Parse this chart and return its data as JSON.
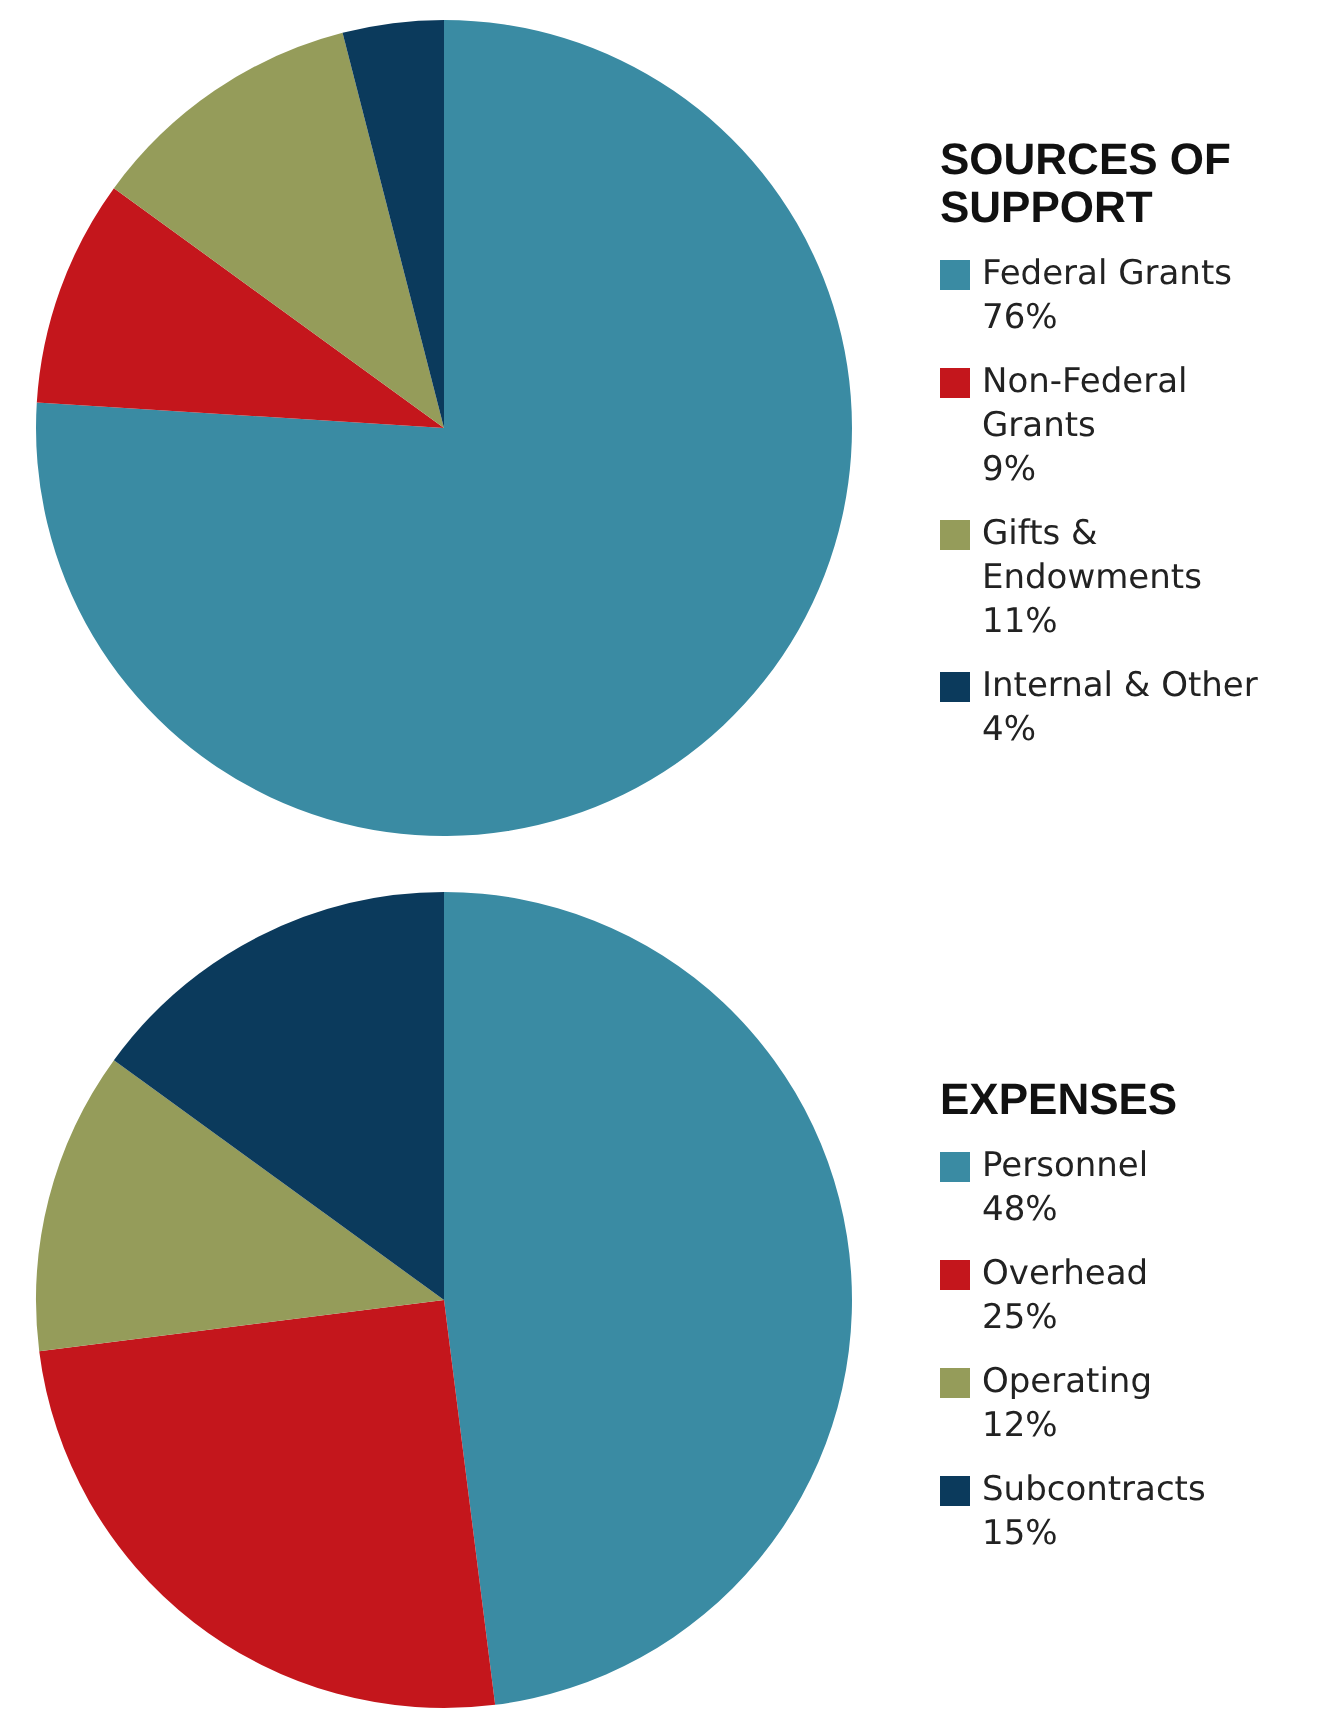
{
  "chart_data": [
    {
      "type": "pie",
      "title": "SOURCES OF SUPPORT",
      "legend": "right",
      "categories": [
        "Federal Grants",
        "Non-Federal Grants",
        "Gifts & Endowments",
        "Internal & Other"
      ],
      "values": [
        76,
        9,
        11,
        4
      ],
      "value_labels": [
        "76%",
        "9%",
        "11%",
        "4%"
      ],
      "colors": [
        "#3a8ba3",
        "#c4161c",
        "#959c5a",
        "#0b3a5c"
      ]
    },
    {
      "type": "pie",
      "title": "EXPENSES",
      "legend": "right",
      "categories": [
        "Personnel",
        "Overhead",
        "Operating",
        "Subcontracts"
      ],
      "values": [
        48,
        25,
        12,
        15
      ],
      "value_labels": [
        "48%",
        "25%",
        "12%",
        "15%"
      ],
      "colors": [
        "#3a8ba3",
        "#c4161c",
        "#959c5a",
        "#0b3a5c"
      ]
    }
  ]
}
